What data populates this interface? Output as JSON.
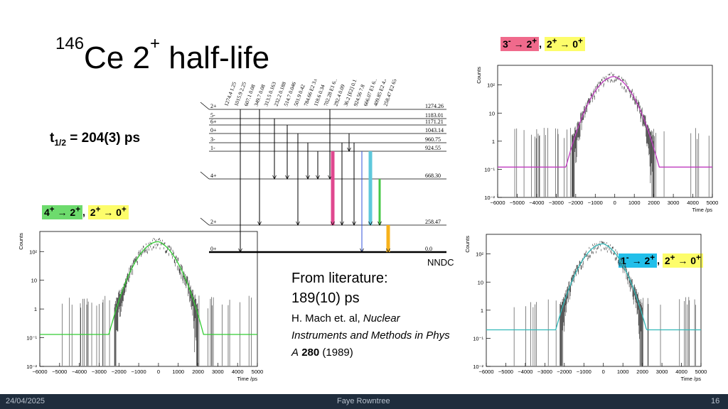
{
  "slide": {
    "title_mass": "146",
    "title_element": "Ce 2",
    "title_sup": "+",
    "title_rest": " half-life",
    "t_half_label": "t",
    "t_half_sub": "1/2",
    "t_half_value": " = 204(3) ps"
  },
  "literature": {
    "heading": "From literature:",
    "value": "189(10) ps",
    "ref_authors": "H. Mach et. al, ",
    "ref_journal": "Nuclear Instruments and Methods in Phys A",
    "ref_volume": "280",
    "ref_year": " (1989)"
  },
  "level_scheme": {
    "source": "NNDC",
    "levels": [
      {
        "spin": "2+",
        "energy": "1274.26"
      },
      {
        "spin": "5-",
        "energy": "1183.01"
      },
      {
        "spin": "6+",
        "energy": "1171.21"
      },
      {
        "spin": "0+",
        "energy": "1043.14"
      },
      {
        "spin": "3-",
        "energy": "960.75"
      },
      {
        "spin": "1-",
        "energy": "924.55"
      },
      {
        "spin": "4+",
        "energy": "668.30"
      },
      {
        "spin": "2+",
        "energy": "258.47"
      },
      {
        "spin": "0+",
        "energy": "0.0"
      }
    ],
    "gamma_labels": [
      "1274.4 1.25",
      "1015.9 2.25",
      "607.1 0.08",
      "349.7 0.08",
      "313.5 0.163",
      "232.2 0.188",
      "514.7 0.046",
      "501.9 0.42",
      "784.66 E2 3.00",
      "118.6 0.34",
      "702.28 E1 6.1",
      "292.4 0.09",
      "36.2 [E2] 0.11",
      "924.56 7.8",
      "666.07 E1 6.1",
      "409.85 E2 4.44",
      "258.47 E2 63"
    ],
    "highlight_colors": {
      "pink": "#e0488f",
      "cyan": "#5ec8dc",
      "green": "#46c846",
      "orange": "#f7b21c",
      "blue": "#3050d8"
    }
  },
  "tags": {
    "top_right": {
      "part1": "3",
      "sup1": "-",
      "arrow1": " → 2",
      "sup2": "+",
      "sep": ", ",
      "part2": "2",
      "sup3": "+",
      "arrow2": " → 0",
      "sup4": "+",
      "color1": "#f06a8c",
      "color2": "#fdfd6a"
    },
    "left": {
      "part1": "4",
      "sup1": "+",
      "arrow1": " → 2",
      "sup2": "+",
      "sep": ", ",
      "part2": "2",
      "sup3": "+",
      "arrow2": " → 0",
      "sup4": "+",
      "color1": "#6ddb6d",
      "color2": "#fdfd6a"
    },
    "bottom_right": {
      "part1": "1",
      "sup1": "-",
      "arrow1": " → 2",
      "sup2": "+",
      "sep": ", ",
      "part2": "2",
      "sup3": "+",
      "arrow2": " → 0",
      "sup4": "+",
      "color1": "#22bfea",
      "color2": "#fdfd6a"
    }
  },
  "footer": {
    "date": "24/04/2025",
    "author": "Faye Rowntree",
    "page": "16"
  },
  "chart_data": [
    {
      "type": "scatter",
      "id": "top-right",
      "ylabel": "Counts",
      "xlabel": "Time /ps",
      "xlim": [
        -6000,
        5000
      ],
      "ylog": true,
      "ylim": [
        0.01,
        500
      ],
      "xticks": [
        -6000,
        -5000,
        -4000,
        -3000,
        -2000,
        -1000,
        0,
        1000,
        2000,
        3000,
        4000,
        5000
      ],
      "yticks": [
        {
          "v": 0.01,
          "l": "10⁻²"
        },
        {
          "v": 0.1,
          "l": "10⁻¹"
        },
        {
          "v": 1,
          "l": "1"
        },
        {
          "v": 10,
          "l": "10"
        },
        {
          "v": 100,
          "l": "10²"
        }
      ],
      "fit_color": "#c03cc0",
      "fit_baseline": 0.12,
      "peak": 200
    },
    {
      "type": "scatter",
      "id": "left",
      "ylabel": "Counts",
      "xlabel": "Time /ps",
      "xlim": [
        -6000,
        5000
      ],
      "ylog": true,
      "ylim": [
        0.01,
        500
      ],
      "xticks": [
        -6000,
        -5000,
        -4000,
        -3000,
        -2000,
        -1000,
        0,
        1000,
        2000,
        3000,
        4000,
        5000
      ],
      "yticks": [
        {
          "v": 0.01,
          "l": "10⁻²"
        },
        {
          "v": 0.1,
          "l": "10⁻¹"
        },
        {
          "v": 1,
          "l": "1"
        },
        {
          "v": 10,
          "l": "10"
        },
        {
          "v": 100,
          "l": "10²"
        }
      ],
      "fit_color": "#33cc33",
      "fit_baseline": 0.13,
      "peak": 220
    },
    {
      "type": "scatter",
      "id": "bottom-right",
      "ylabel": "Counts",
      "xlabel": "Time /ps",
      "xlim": [
        -6000,
        5000
      ],
      "ylog": true,
      "ylim": [
        0.01,
        500
      ],
      "xticks": [
        -6000,
        -5000,
        -4000,
        -3000,
        -2000,
        -1000,
        0,
        1000,
        2000,
        3000,
        4000,
        5000
      ],
      "yticks": [
        {
          "v": 0.01,
          "l": "10⁻²"
        },
        {
          "v": 0.1,
          "l": "10⁻¹"
        },
        {
          "v": 1,
          "l": "1"
        },
        {
          "v": 10,
          "l": "10"
        },
        {
          "v": 100,
          "l": "10²"
        }
      ],
      "fit_color": "#33b8b8",
      "fit_baseline": 0.2,
      "peak": 230
    }
  ]
}
